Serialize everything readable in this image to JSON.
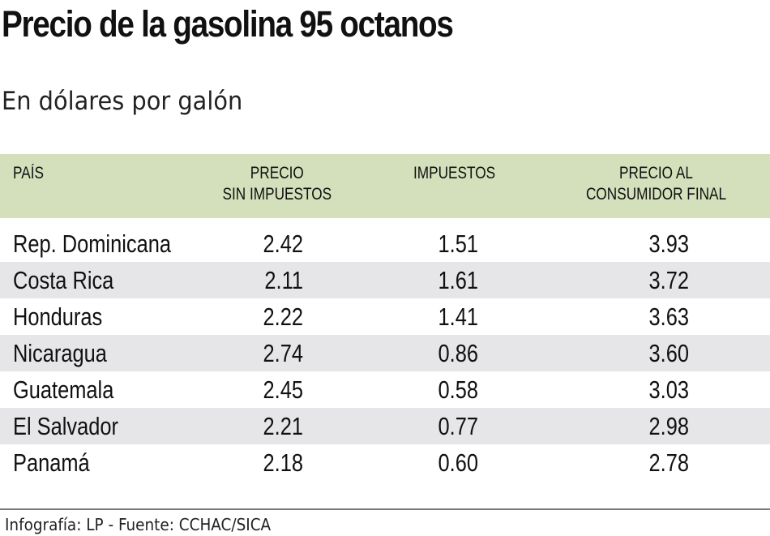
{
  "title": "Precio de la gasolina 95 octanos",
  "subtitle": "En dólares por galón",
  "table": {
    "headers": [
      "PAÍS",
      "PRECIO\nSIN IMPUESTOS",
      "IMPUESTOS",
      "PRECIO AL\nCONSUMIDOR FINAL"
    ],
    "header_bg": "#d3e0bb",
    "alt_row_bg": "#e6e6e8",
    "rows": [
      {
        "country": "Rep. Dominicana",
        "sin_impuestos": "2.42",
        "impuestos": "1.51",
        "consumidor_final": "3.93"
      },
      {
        "country": "Costa Rica",
        "sin_impuestos": "2.11",
        "impuestos": "1.61",
        "consumidor_final": "3.72"
      },
      {
        "country": "Honduras",
        "sin_impuestos": "2.22",
        "impuestos": "1.41",
        "consumidor_final": "3.63"
      },
      {
        "country": "Nicaragua",
        "sin_impuestos": "2.74",
        "impuestos": "0.86",
        "consumidor_final": "3.60"
      },
      {
        "country": "Guatemala",
        "sin_impuestos": "2.45",
        "impuestos": "0.58",
        "consumidor_final": "3.03"
      },
      {
        "country": "El Salvador",
        "sin_impuestos": "2.21",
        "impuestos": "0.77",
        "consumidor_final": "2.98"
      },
      {
        "country": "Panamá",
        "sin_impuestos": "2.18",
        "impuestos": "0.60",
        "consumidor_final": "2.78"
      }
    ]
  },
  "footer": "Infografía: LP - Fuente: CCHAC/SICA"
}
